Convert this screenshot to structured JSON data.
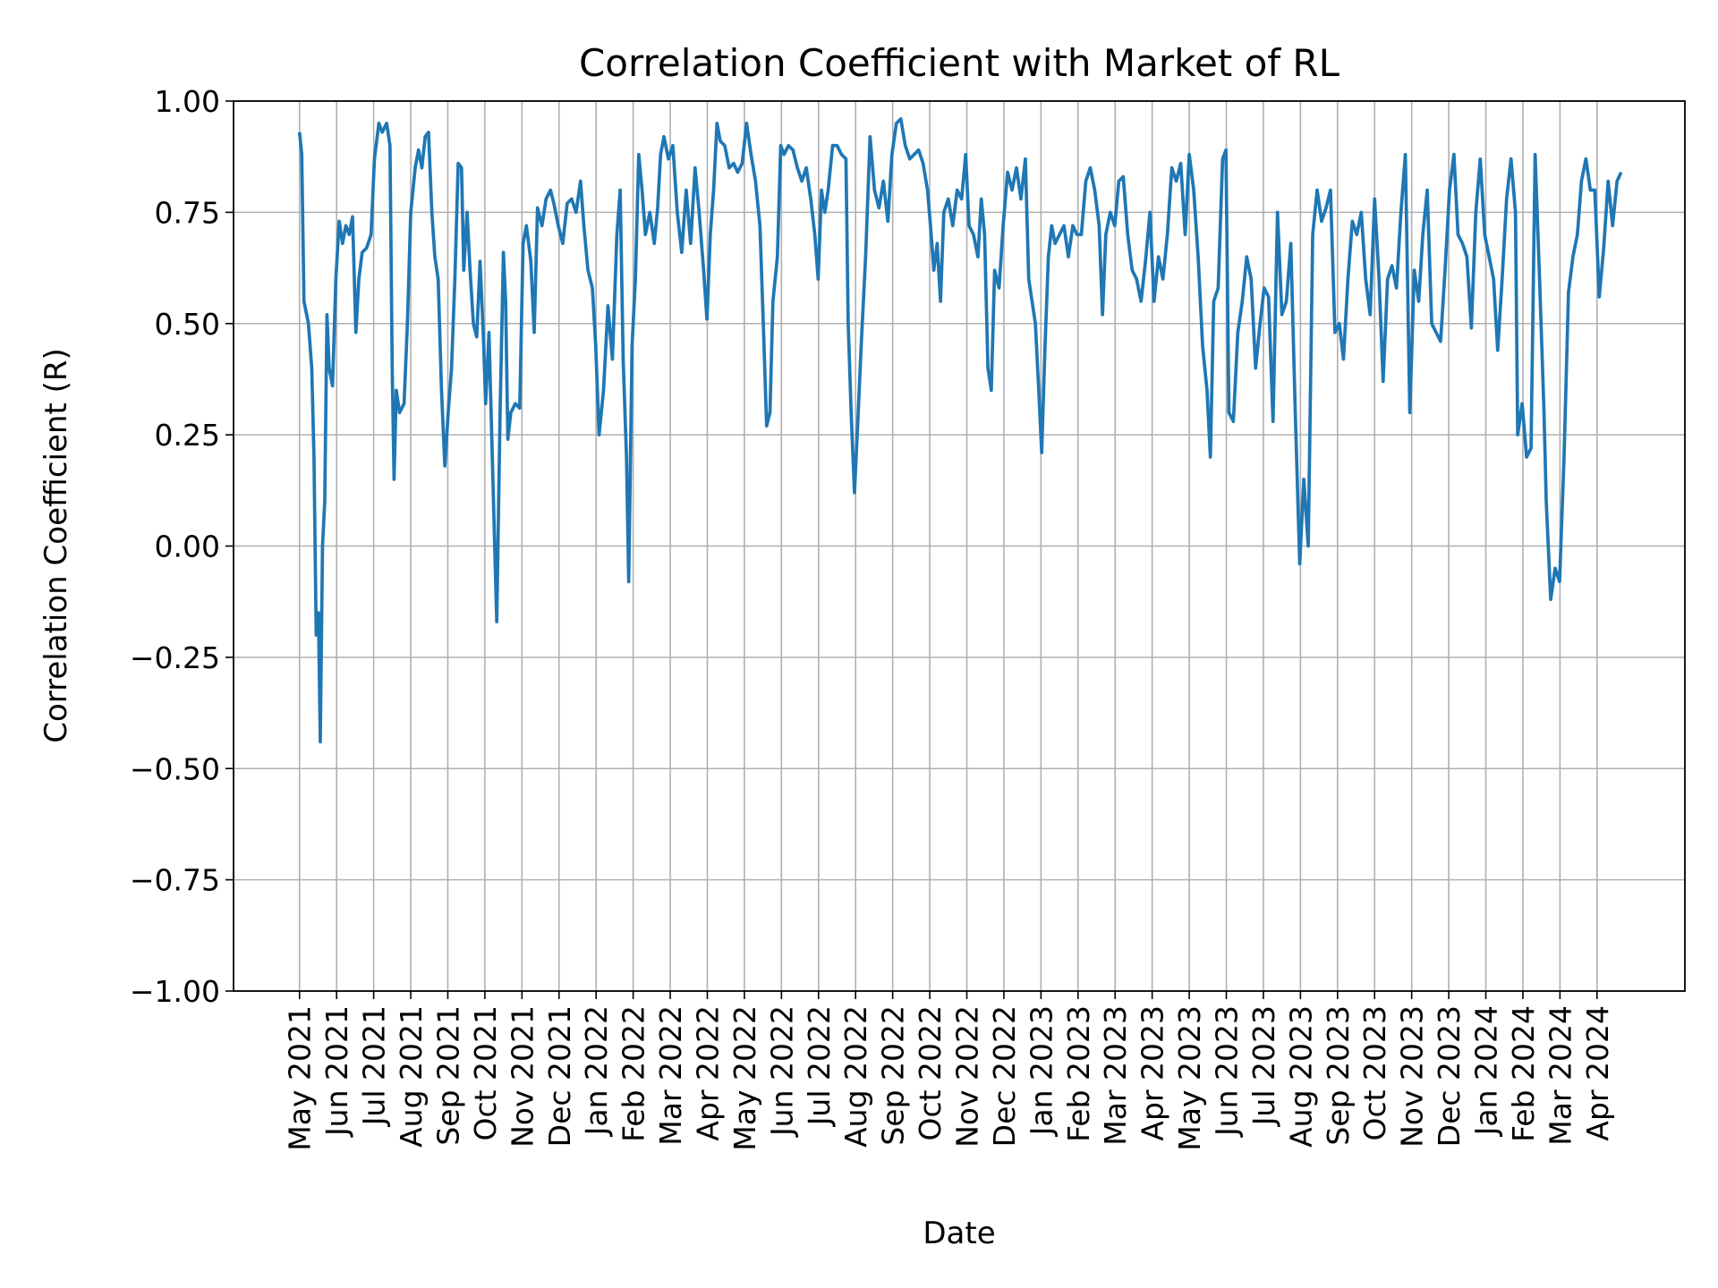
{
  "chart_data": {
    "type": "line",
    "title": "Correlation Coefficient with Market of RL",
    "xlabel": "Date",
    "ylabel": "Correlation Coefficient (R)",
    "color": "#1f77b4",
    "grid": true,
    "xlim": [
      -1.78,
      37.37
    ],
    "ylim": [
      -1,
      1
    ],
    "yticks": [
      {
        "value": -1,
        "label": "−1.00"
      },
      {
        "value": -0.75,
        "label": "−0.75"
      },
      {
        "value": -0.5,
        "label": "−0.50"
      },
      {
        "value": -0.25,
        "label": "−0.25"
      },
      {
        "value": 0,
        "label": "0.00"
      },
      {
        "value": 0.25,
        "label": "0.25"
      },
      {
        "value": 0.5,
        "label": "0.50"
      },
      {
        "value": 0.75,
        "label": "0.75"
      },
      {
        "value": 1,
        "label": "1.00"
      }
    ],
    "xticks": [
      {
        "value": 0,
        "label": "May 2021"
      },
      {
        "value": 1,
        "label": "Jun 2021"
      },
      {
        "value": 2,
        "label": "Jul 2021"
      },
      {
        "value": 3,
        "label": "Aug 2021"
      },
      {
        "value": 4,
        "label": "Sep 2021"
      },
      {
        "value": 5,
        "label": "Oct 2021"
      },
      {
        "value": 6,
        "label": "Nov 2021"
      },
      {
        "value": 7,
        "label": "Dec 2021"
      },
      {
        "value": 8,
        "label": "Jan 2022"
      },
      {
        "value": 9,
        "label": "Feb 2022"
      },
      {
        "value": 10,
        "label": "Mar 2022"
      },
      {
        "value": 11,
        "label": "Apr 2022"
      },
      {
        "value": 12,
        "label": "May 2022"
      },
      {
        "value": 13,
        "label": "Jun 2022"
      },
      {
        "value": 14,
        "label": "Jul 2022"
      },
      {
        "value": 15,
        "label": "Aug 2022"
      },
      {
        "value": 16,
        "label": "Sep 2022"
      },
      {
        "value": 17,
        "label": "Oct 2022"
      },
      {
        "value": 18,
        "label": "Nov 2022"
      },
      {
        "value": 19,
        "label": "Dec 2022"
      },
      {
        "value": 20,
        "label": "Jan 2023"
      },
      {
        "value": 21,
        "label": "Feb 2023"
      },
      {
        "value": 22,
        "label": "Mar 2023"
      },
      {
        "value": 23,
        "label": "Apr 2023"
      },
      {
        "value": 24,
        "label": "May 2023"
      },
      {
        "value": 25,
        "label": "Jun 2023"
      },
      {
        "value": 26,
        "label": "Jul 2023"
      },
      {
        "value": 27,
        "label": "Aug 2023"
      },
      {
        "value": 28,
        "label": "Sep 2023"
      },
      {
        "value": 29,
        "label": "Oct 2023"
      },
      {
        "value": 30,
        "label": "Nov 2023"
      },
      {
        "value": 31,
        "label": "Dec 2023"
      },
      {
        "value": 32,
        "label": "Jan 2024"
      },
      {
        "value": 33,
        "label": "Feb 2024"
      },
      {
        "value": 34,
        "label": "Mar 2024"
      },
      {
        "value": 35,
        "label": "Apr 2024"
      }
    ],
    "x": [
      0,
      0.06,
      0.12,
      0.24,
      0.33,
      0.39,
      0.45,
      0.51,
      0.56,
      0.62,
      0.68,
      0.74,
      0.8,
      0.89,
      0.98,
      1.07,
      1.16,
      1.25,
      1.34,
      1.43,
      1.52,
      1.6,
      1.69,
      1.81,
      1.93,
      2.02,
      2.14,
      2.23,
      2.35,
      2.44,
      2.5,
      2.55,
      2.61,
      2.7,
      2.82,
      2.91,
      3,
      3.12,
      3.21,
      3.3,
      3.39,
      3.48,
      3.57,
      3.65,
      3.74,
      3.83,
      3.92,
      4.01,
      4.1,
      4.19,
      4.28,
      4.37,
      4.43,
      4.52,
      4.6,
      4.69,
      4.78,
      4.87,
      4.96,
      5.02,
      5.11,
      5.2,
      5.32,
      5.41,
      5.5,
      5.56,
      5.62,
      5.7,
      5.82,
      5.94,
      6.03,
      6.12,
      6.24,
      6.33,
      6.42,
      6.54,
      6.65,
      6.77,
      6.86,
      6.98,
      7.1,
      7.22,
      7.34,
      7.46,
      7.58,
      7.67,
      7.78,
      7.9,
      7.99,
      8.08,
      8.2,
      8.32,
      8.44,
      8.56,
      8.65,
      8.73,
      8.82,
      8.88,
      8.97,
      9.06,
      9.15,
      9.24,
      9.33,
      9.45,
      9.57,
      9.66,
      9.74,
      9.83,
      9.95,
      10.07,
      10.19,
      10.31,
      10.43,
      10.55,
      10.67,
      10.78,
      10.9,
      10.99,
      11.08,
      11.17,
      11.26,
      11.35,
      11.47,
      11.59,
      11.71,
      11.82,
      11.94,
      12.06,
      12.18,
      12.3,
      12.42,
      12.51,
      12.6,
      12.69,
      12.77,
      12.89,
      12.98,
      13.07,
      13.19,
      13.31,
      13.43,
      13.55,
      13.67,
      13.79,
      13.9,
      13.99,
      14.08,
      14.17,
      14.26,
      14.38,
      14.5,
      14.62,
      14.74,
      14.8,
      14.88,
      14.97,
      15.06,
      15.15,
      15.27,
      15.39,
      15.51,
      15.63,
      15.75,
      15.87,
      15.98,
      16.1,
      16.22,
      16.34,
      16.46,
      16.58,
      16.7,
      16.82,
      16.94,
      17.02,
      17.11,
      17.2,
      17.29,
      17.38,
      17.5,
      17.62,
      17.74,
      17.86,
      17.97,
      18.06,
      18.18,
      18.3,
      18.39,
      18.48,
      18.57,
      18.66,
      18.75,
      18.87,
      18.98,
      19.1,
      19.22,
      19.34,
      19.46,
      19.58,
      19.67,
      19.76,
      19.85,
      19.94,
      20.02,
      20.11,
      20.2,
      20.29,
      20.38,
      20.5,
      20.62,
      20.74,
      20.86,
      20.97,
      21.09,
      21.21,
      21.33,
      21.45,
      21.57,
      21.66,
      21.75,
      21.87,
      21.99,
      22.1,
      22.22,
      22.34,
      22.46,
      22.58,
      22.7,
      22.82,
      22.94,
      23.05,
      23.17,
      23.29,
      23.41,
      23.53,
      23.65,
      23.77,
      23.89,
      24,
      24.12,
      24.24,
      24.36,
      24.48,
      24.57,
      24.66,
      24.78,
      24.9,
      24.99,
      25.07,
      25.19,
      25.31,
      25.43,
      25.55,
      25.67,
      25.79,
      25.91,
      26.02,
      26.14,
      26.26,
      26.38,
      26.5,
      26.62,
      26.74,
      26.86,
      26.98,
      27.09,
      27.21,
      27.33,
      27.45,
      27.57,
      27.69,
      27.81,
      27.93,
      28.05,
      28.16,
      28.28,
      28.4,
      28.52,
      28.64,
      28.76,
      28.88,
      29,
      29.12,
      29.23,
      29.35,
      29.47,
      29.59,
      29.71,
      29.83,
      29.95,
      30.07,
      30.19,
      30.3,
      30.42,
      30.54,
      30.66,
      30.78,
      30.9,
      31.02,
      31.14,
      31.25,
      31.37,
      31.49,
      31.61,
      31.73,
      31.85,
      31.97,
      32.09,
      32.21,
      32.32,
      32.44,
      32.56,
      32.68,
      32.8,
      32.86,
      32.98,
      33.1,
      33.22,
      33.33,
      33.45,
      33.57,
      33.63,
      33.75,
      33.87,
      33.99,
      34.11,
      34.23,
      34.35,
      34.47,
      34.58,
      34.7,
      34.82,
      34.94,
      35.06,
      35.18,
      35.3,
      35.42,
      35.54,
      35.65
    ],
    "values": [
      0.93,
      0.88,
      0.55,
      0.5,
      0.4,
      0.2,
      -0.2,
      -0.15,
      -0.44,
      0,
      0.1,
      0.52,
      0.4,
      0.36,
      0.6,
      0.73,
      0.68,
      0.72,
      0.7,
      0.74,
      0.48,
      0.6,
      0.66,
      0.67,
      0.7,
      0.87,
      0.95,
      0.93,
      0.95,
      0.9,
      0.4,
      0.15,
      0.35,
      0.3,
      0.32,
      0.5,
      0.75,
      0.85,
      0.89,
      0.85,
      0.92,
      0.93,
      0.75,
      0.65,
      0.6,
      0.35,
      0.18,
      0.3,
      0.4,
      0.6,
      0.86,
      0.85,
      0.62,
      0.75,
      0.62,
      0.5,
      0.47,
      0.64,
      0.47,
      0.32,
      0.48,
      0.2,
      -0.17,
      0.3,
      0.66,
      0.55,
      0.24,
      0.3,
      0.32,
      0.31,
      0.68,
      0.72,
      0.64,
      0.48,
      0.76,
      0.72,
      0.78,
      0.8,
      0.77,
      0.72,
      0.68,
      0.77,
      0.78,
      0.75,
      0.82,
      0.72,
      0.62,
      0.58,
      0.45,
      0.25,
      0.35,
      0.54,
      0.42,
      0.7,
      0.8,
      0.42,
      0.2,
      -0.08,
      0.45,
      0.6,
      0.88,
      0.8,
      0.7,
      0.75,
      0.68,
      0.76,
      0.88,
      0.92,
      0.87,
      0.9,
      0.75,
      0.66,
      0.8,
      0.68,
      0.85,
      0.75,
      0.62,
      0.51,
      0.7,
      0.8,
      0.95,
      0.91,
      0.9,
      0.85,
      0.86,
      0.84,
      0.86,
      0.95,
      0.88,
      0.82,
      0.72,
      0.5,
      0.27,
      0.3,
      0.55,
      0.65,
      0.9,
      0.88,
      0.9,
      0.89,
      0.85,
      0.82,
      0.85,
      0.78,
      0.7,
      0.6,
      0.8,
      0.75,
      0.8,
      0.9,
      0.9,
      0.88,
      0.87,
      0.5,
      0.3,
      0.12,
      0.28,
      0.45,
      0.65,
      0.92,
      0.8,
      0.76,
      0.82,
      0.73,
      0.88,
      0.95,
      0.96,
      0.9,
      0.87,
      0.88,
      0.89,
      0.86,
      0.8,
      0.72,
      0.62,
      0.68,
      0.55,
      0.75,
      0.78,
      0.72,
      0.8,
      0.78,
      0.88,
      0.72,
      0.7,
      0.65,
      0.78,
      0.7,
      0.4,
      0.35,
      0.62,
      0.58,
      0.72,
      0.84,
      0.8,
      0.85,
      0.78,
      0.87,
      0.6,
      0.55,
      0.5,
      0.35,
      0.21,
      0.45,
      0.65,
      0.72,
      0.68,
      0.7,
      0.72,
      0.65,
      0.72,
      0.7,
      0.7,
      0.82,
      0.85,
      0.8,
      0.72,
      0.52,
      0.7,
      0.75,
      0.72,
      0.82,
      0.83,
      0.7,
      0.62,
      0.6,
      0.55,
      0.64,
      0.75,
      0.55,
      0.65,
      0.6,
      0.7,
      0.85,
      0.82,
      0.86,
      0.7,
      0.88,
      0.8,
      0.65,
      0.45,
      0.35,
      0.2,
      0.55,
      0.58,
      0.87,
      0.89,
      0.3,
      0.28,
      0.48,
      0.55,
      0.65,
      0.6,
      0.4,
      0.5,
      0.58,
      0.56,
      0.28,
      0.75,
      0.52,
      0.55,
      0.68,
      0.3,
      -0.04,
      0.15,
      0,
      0.7,
      0.8,
      0.73,
      0.76,
      0.8,
      0.48,
      0.5,
      0.42,
      0.6,
      0.73,
      0.7,
      0.75,
      0.6,
      0.52,
      0.78,
      0.6,
      0.37,
      0.6,
      0.63,
      0.58,
      0.75,
      0.88,
      0.3,
      0.62,
      0.55,
      0.7,
      0.8,
      0.5,
      0.48,
      0.46,
      0.62,
      0.8,
      0.88,
      0.7,
      0.68,
      0.65,
      0.49,
      0.75,
      0.87,
      0.7,
      0.65,
      0.6,
      0.44,
      0.6,
      0.78,
      0.87,
      0.75,
      0.25,
      0.32,
      0.2,
      0.22,
      0.88,
      0.6,
      0.3,
      0.1,
      -0.12,
      -0.05,
      -0.08,
      0.2,
      0.57,
      0.65,
      0.7,
      0.82,
      0.87,
      0.8,
      0.8,
      0.56,
      0.67,
      0.82,
      0.72,
      0.82,
      0.84
    ]
  }
}
